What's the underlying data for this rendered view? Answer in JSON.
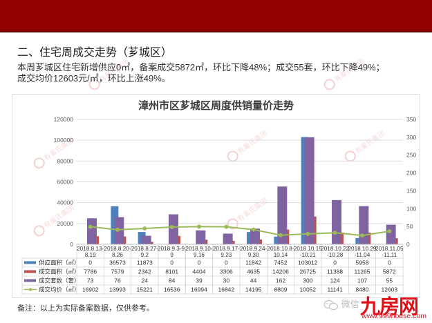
{
  "header_bar": {
    "color": "#930000"
  },
  "section": {
    "title": "二、住宅周成交走势（芗城区）",
    "summary_line1": "本周芗城区住宅新增供应0㎡，备案成交5872㎡，环比下降48%；成交55套，环比下降49%；",
    "summary_line2": "成交均价12603元/㎡，环比上涨49%。"
  },
  "chart_data": {
    "type": "bar",
    "title": "漳州市区芗城区周度供销量价走势",
    "xlabel": "",
    "ylabel": "",
    "categories": [
      "2018.8.13-8.19",
      "2018.8.20-8.26",
      "2018.8.27-9.2",
      "2018.9.3-9.9",
      "2018.9.10-9.16",
      "2018.9.17-9.23",
      "2018.9.24-9.30",
      "2018.10.8-10.14",
      "2018.10.15-10.21",
      "2018.10.22-10.28",
      "2018.10.29-11.04",
      "2018.11.05-11.11"
    ],
    "x_tick_labels": [
      [
        "2018.8.13-",
        "8.19"
      ],
      [
        "2018.8.20-",
        "8.26"
      ],
      [
        "2018.8.27-",
        "9.2"
      ],
      [
        "2018.9.3-9.",
        "9"
      ],
      [
        "2018.9.10-",
        "9.16"
      ],
      [
        "2018.9.17-",
        "9.23"
      ],
      [
        "2018.9.24-",
        "9.30"
      ],
      [
        "2018.10.8-",
        "10.14"
      ],
      [
        "2018.10.15",
        "-10.21"
      ],
      [
        "2018.10.22",
        "-10.28"
      ],
      [
        "2018.10.29",
        "-11.04"
      ],
      [
        "2018.11.05",
        "-11.11"
      ]
    ],
    "y_left": {
      "min": 0,
      "max": 120000,
      "ticks": [
        0,
        20000,
        40000,
        60000,
        80000,
        100000,
        120000
      ]
    },
    "y_right": {
      "min": 0,
      "max": 350,
      "ticks": [
        0,
        50,
        100,
        150,
        200,
        250,
        300,
        350
      ]
    },
    "grid": true,
    "legend_position": "data-table",
    "series": [
      {
        "name": "供应面积（㎡）",
        "type": "bar",
        "axis": "left",
        "color": "#4f81bd",
        "values": [
          0,
          36573,
          11873,
          0,
          0,
          0,
          11842,
          7452,
          103012,
          0,
          5958,
          0
        ]
      },
      {
        "name": "成交面积（㎡）",
        "type": "bar",
        "axis": "left",
        "color": "#c0504d",
        "values": [
          7786,
          7579,
          2342,
          8101,
          4404,
          3306,
          4635,
          14206,
          26725,
          11388,
          11265,
          5872
        ]
      },
      {
        "name": "成交套数（套）",
        "type": "bar",
        "axis": "right",
        "color": "#8064a2",
        "values": [
          73,
          76,
          24,
          84,
          39,
          30,
          44,
          162,
          300,
          124,
          107,
          55
        ]
      },
      {
        "name": "成交均价（㎡）",
        "type": "line",
        "axis": "left",
        "color": "#9bbb59",
        "values": [
          16902,
          13993,
          15221,
          16536,
          16994,
          16842,
          14195,
          8809,
          10052,
          11141,
          8480,
          12603
        ]
      }
    ]
  },
  "footer": {
    "note": "备注：以上为实际备案数据，仅供参考。",
    "wechat_label": "微信",
    "logo_text": "九房网",
    "logo_url": "www.999house.com"
  },
  "watermark": {
    "text": "有巢氏集团"
  }
}
